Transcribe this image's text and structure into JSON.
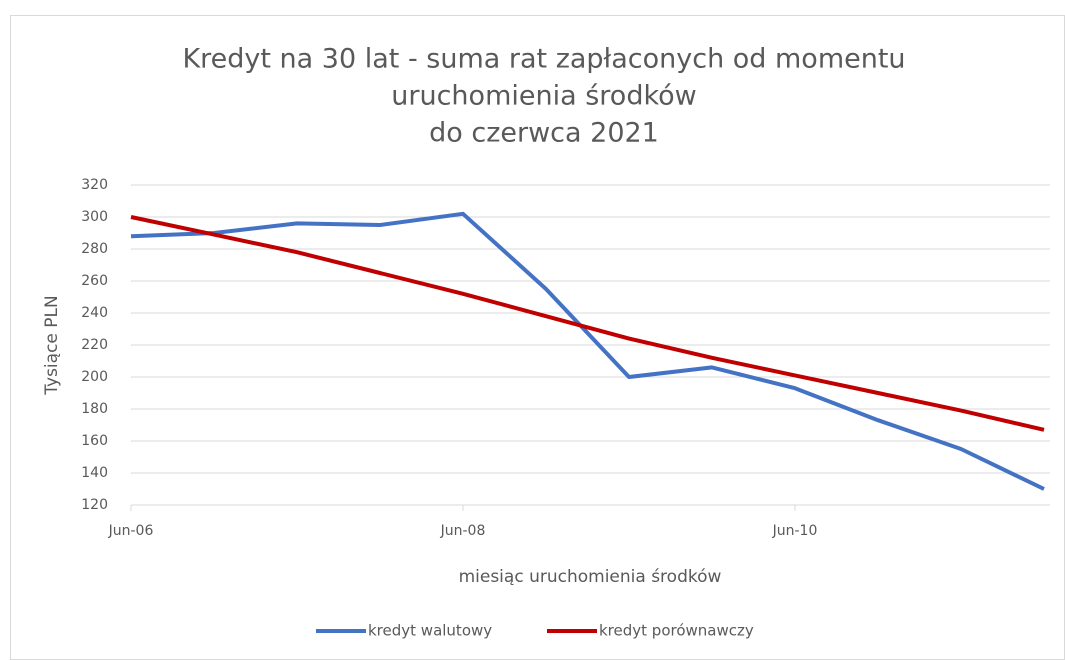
{
  "chart_data": {
    "type": "line",
    "title": [
      "Kredyt na 30 lat - suma rat zapłaconych od momentu",
      "uruchomienia środków",
      "do czerwca 2021"
    ],
    "x_label": "miesiąc uruchomienia środków",
    "y_label": "Tysiące PLN",
    "categories": [
      "Jun-06",
      null,
      null,
      null,
      "Jun-08",
      null,
      null,
      null,
      "Jun-10",
      null,
      null,
      null
    ],
    "series": [
      {
        "name": "kredyt walutowy",
        "color": "#4472c4",
        "values": [
          288,
          290,
          296,
          295,
          302,
          255,
          200,
          206,
          193,
          173,
          155,
          130
        ]
      },
      {
        "name": "kredyt porównawczy",
        "color": "#c00000",
        "values": [
          300,
          289,
          278,
          265,
          252,
          238,
          224,
          212,
          201,
          190,
          179,
          167
        ]
      }
    ],
    "ylim": [
      120,
      320
    ],
    "yticks": [
      120,
      140,
      160,
      180,
      200,
      220,
      240,
      260,
      280,
      300,
      320
    ],
    "grid": true,
    "legend": "bottom"
  }
}
